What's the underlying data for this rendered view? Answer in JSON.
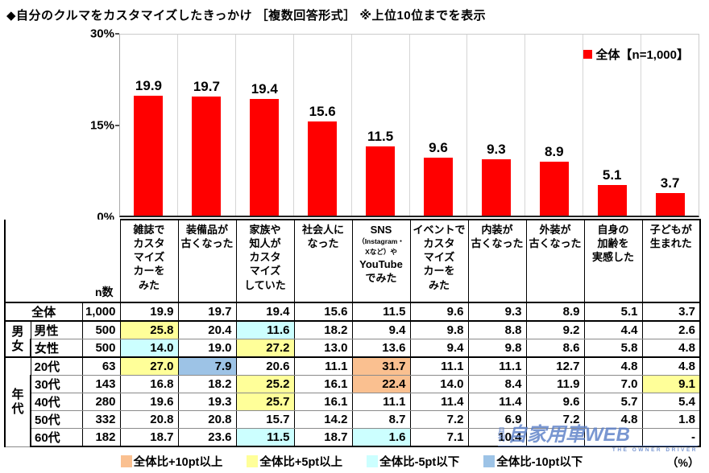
{
  "title": "◆自分のクルマをカスタマイズしたきっかけ ［複数回答形式］ ※上位10位までを表示",
  "chart_data": {
    "type": "bar",
    "title": "自分のクルマをカスタマイズしたきっかけ",
    "series_name": "全体【n=1,000】",
    "categories": [
      "雑誌でカスタマイズカーをみた",
      "装備品が古くなった",
      "家族や知人がカスタマイズしていた",
      "社会人になった",
      "SNS（Instagram・Xなど）やYouTubeでみた",
      "イベントでカスタマイズカーをみた",
      "内装が古くなった",
      "外装が古くなった",
      "自身の加齢を実感した",
      "子どもが生まれた"
    ],
    "values": [
      19.9,
      19.7,
      19.4,
      15.6,
      11.5,
      9.6,
      9.3,
      8.9,
      5.1,
      3.7
    ],
    "xlabel": "",
    "ylabel": "%",
    "ylim": [
      0,
      30
    ],
    "y_ticks": [
      "30%",
      "15%",
      "0%"
    ],
    "grid": "vertical-separators",
    "legend_position": "top-right",
    "bar_color": "#FF0000"
  },
  "legend": {
    "label": "全体【n=1,000】",
    "color": "#FF0000"
  },
  "highlight_colors": {
    "plus10": "#FAC090",
    "plus5": "#FFFF99",
    "minus5": "#CCFFFF",
    "minus10": "#9DC3E6"
  },
  "table": {
    "n_header": "n数",
    "columns": [
      {
        "full": "雑誌でカスタマイズカーをみた",
        "lines": [
          {
            "t": "雑誌で"
          },
          {
            "t": "カスタ"
          },
          {
            "t": "マイズ"
          },
          {
            "t": "カーを"
          },
          {
            "t": "みた"
          }
        ]
      },
      {
        "full": "装備品が古くなった",
        "lines": [
          {
            "t": "装備品が"
          },
          {
            "t": "古くなった"
          }
        ]
      },
      {
        "full": "家族や知人がカスタマイズしていた",
        "lines": [
          {
            "t": "家族や"
          },
          {
            "t": "知人が"
          },
          {
            "t": "カスタ"
          },
          {
            "t": "マイズ"
          },
          {
            "t": "していた"
          }
        ]
      },
      {
        "full": "社会人になった",
        "lines": [
          {
            "t": "社会人に"
          },
          {
            "t": "なった"
          }
        ]
      },
      {
        "full": "SNS（Instagram・Xなど）やYouTubeでみた",
        "lines": [
          {
            "t": "SNS"
          },
          {
            "t": "（Instagram・",
            "s": true
          },
          {
            "t": "Xなど）や",
            "s": true
          },
          {
            "t": "YouTube"
          },
          {
            "t": "でみた"
          }
        ]
      },
      {
        "full": "イベントでカスタマイズカーをみた",
        "lines": [
          {
            "t": "イベントで"
          },
          {
            "t": "カスタ"
          },
          {
            "t": "マイズ"
          },
          {
            "t": "カーを"
          },
          {
            "t": "みた"
          }
        ]
      },
      {
        "full": "内装が古くなった",
        "lines": [
          {
            "t": "内装が"
          },
          {
            "t": "古くなった"
          }
        ]
      },
      {
        "full": "外装が古くなった",
        "lines": [
          {
            "t": "外装が"
          },
          {
            "t": "古くなった"
          }
        ]
      },
      {
        "full": "自身の加齢を実感した",
        "lines": [
          {
            "t": "自身の"
          },
          {
            "t": "加齢を"
          },
          {
            "t": "実感した"
          }
        ]
      },
      {
        "full": "子どもが生まれた",
        "lines": [
          {
            "t": "子どもが"
          },
          {
            "t": "生まれた"
          }
        ]
      }
    ],
    "rows": [
      {
        "label": "全体",
        "label_span": 2,
        "n": "1,000",
        "group_start": true,
        "values": [
          "19.9",
          "19.7",
          "19.4",
          "15.6",
          "11.5",
          "9.6",
          "9.3",
          "8.9",
          "5.1",
          "3.7"
        ],
        "hl": [
          null,
          null,
          null,
          null,
          null,
          null,
          null,
          null,
          null,
          null
        ]
      },
      {
        "group": {
          "label": "男女",
          "span": 2
        },
        "label": "男性",
        "n": "500",
        "group_start": true,
        "values": [
          "25.8",
          "20.4",
          "11.6",
          "18.2",
          "9.4",
          "9.8",
          "8.8",
          "9.2",
          "4.4",
          "2.6"
        ],
        "hl": [
          "plus5",
          null,
          "minus5",
          null,
          null,
          null,
          null,
          null,
          null,
          null
        ]
      },
      {
        "label": "女性",
        "n": "500",
        "values": [
          "14.0",
          "19.0",
          "27.2",
          "13.0",
          "13.6",
          "9.4",
          "9.8",
          "8.6",
          "5.8",
          "4.8"
        ],
        "hl": [
          "minus5",
          null,
          "plus5",
          null,
          null,
          null,
          null,
          null,
          null,
          null
        ]
      },
      {
        "group": {
          "label": "年代",
          "span": 5
        },
        "label": "20代",
        "n": "63",
        "group_start": true,
        "values": [
          "27.0",
          "7.9",
          "20.6",
          "11.1",
          "31.7",
          "11.1",
          "11.1",
          "12.7",
          "4.8",
          "4.8"
        ],
        "hl": [
          "plus5",
          "minus10",
          null,
          null,
          "plus10",
          null,
          null,
          null,
          null,
          null
        ]
      },
      {
        "label": "30代",
        "n": "143",
        "values": [
          "16.8",
          "18.2",
          "25.2",
          "16.1",
          "22.4",
          "14.0",
          "8.4",
          "11.9",
          "7.0",
          "9.1"
        ],
        "hl": [
          null,
          null,
          "plus5",
          null,
          "plus10",
          null,
          null,
          null,
          null,
          "plus5"
        ]
      },
      {
        "label": "40代",
        "n": "280",
        "values": [
          "19.6",
          "19.3",
          "25.7",
          "16.1",
          "11.1",
          "11.4",
          "11.4",
          "9.6",
          "5.7",
          "5.4"
        ],
        "hl": [
          null,
          null,
          "plus5",
          null,
          null,
          null,
          null,
          null,
          null,
          null
        ]
      },
      {
        "label": "50代",
        "n": "332",
        "values": [
          "20.8",
          "20.8",
          "15.7",
          "14.2",
          "8.7",
          "7.2",
          "6.9",
          "7.2",
          "4.8",
          "1.8"
        ],
        "hl": [
          null,
          null,
          null,
          null,
          null,
          null,
          null,
          null,
          null,
          null
        ]
      },
      {
        "label": "60代",
        "n": "182",
        "values": [
          "18.7",
          "23.6",
          "11.5",
          "18.7",
          "1.6",
          "7.1",
          "10.4",
          "",
          "",
          "-"
        ],
        "hl": [
          null,
          null,
          "minus5",
          null,
          "minus5",
          null,
          null,
          null,
          null,
          null
        ]
      }
    ]
  },
  "footer": {
    "items": [
      {
        "label": "全体比+10pt以上",
        "color": "#FAC090"
      },
      {
        "label": "全体比+5pt以上",
        "color": "#FFFF99"
      },
      {
        "label": "全体比-5pt以下",
        "color": "#CCFFFF"
      },
      {
        "label": "全体比-10pt以下",
        "color": "#9DC3E6"
      }
    ],
    "unit": "（%）"
  },
  "watermark": {
    "prefix": "月刊",
    "main": "自家用車WEB",
    "sub": "THE OWNER DRIVER"
  }
}
